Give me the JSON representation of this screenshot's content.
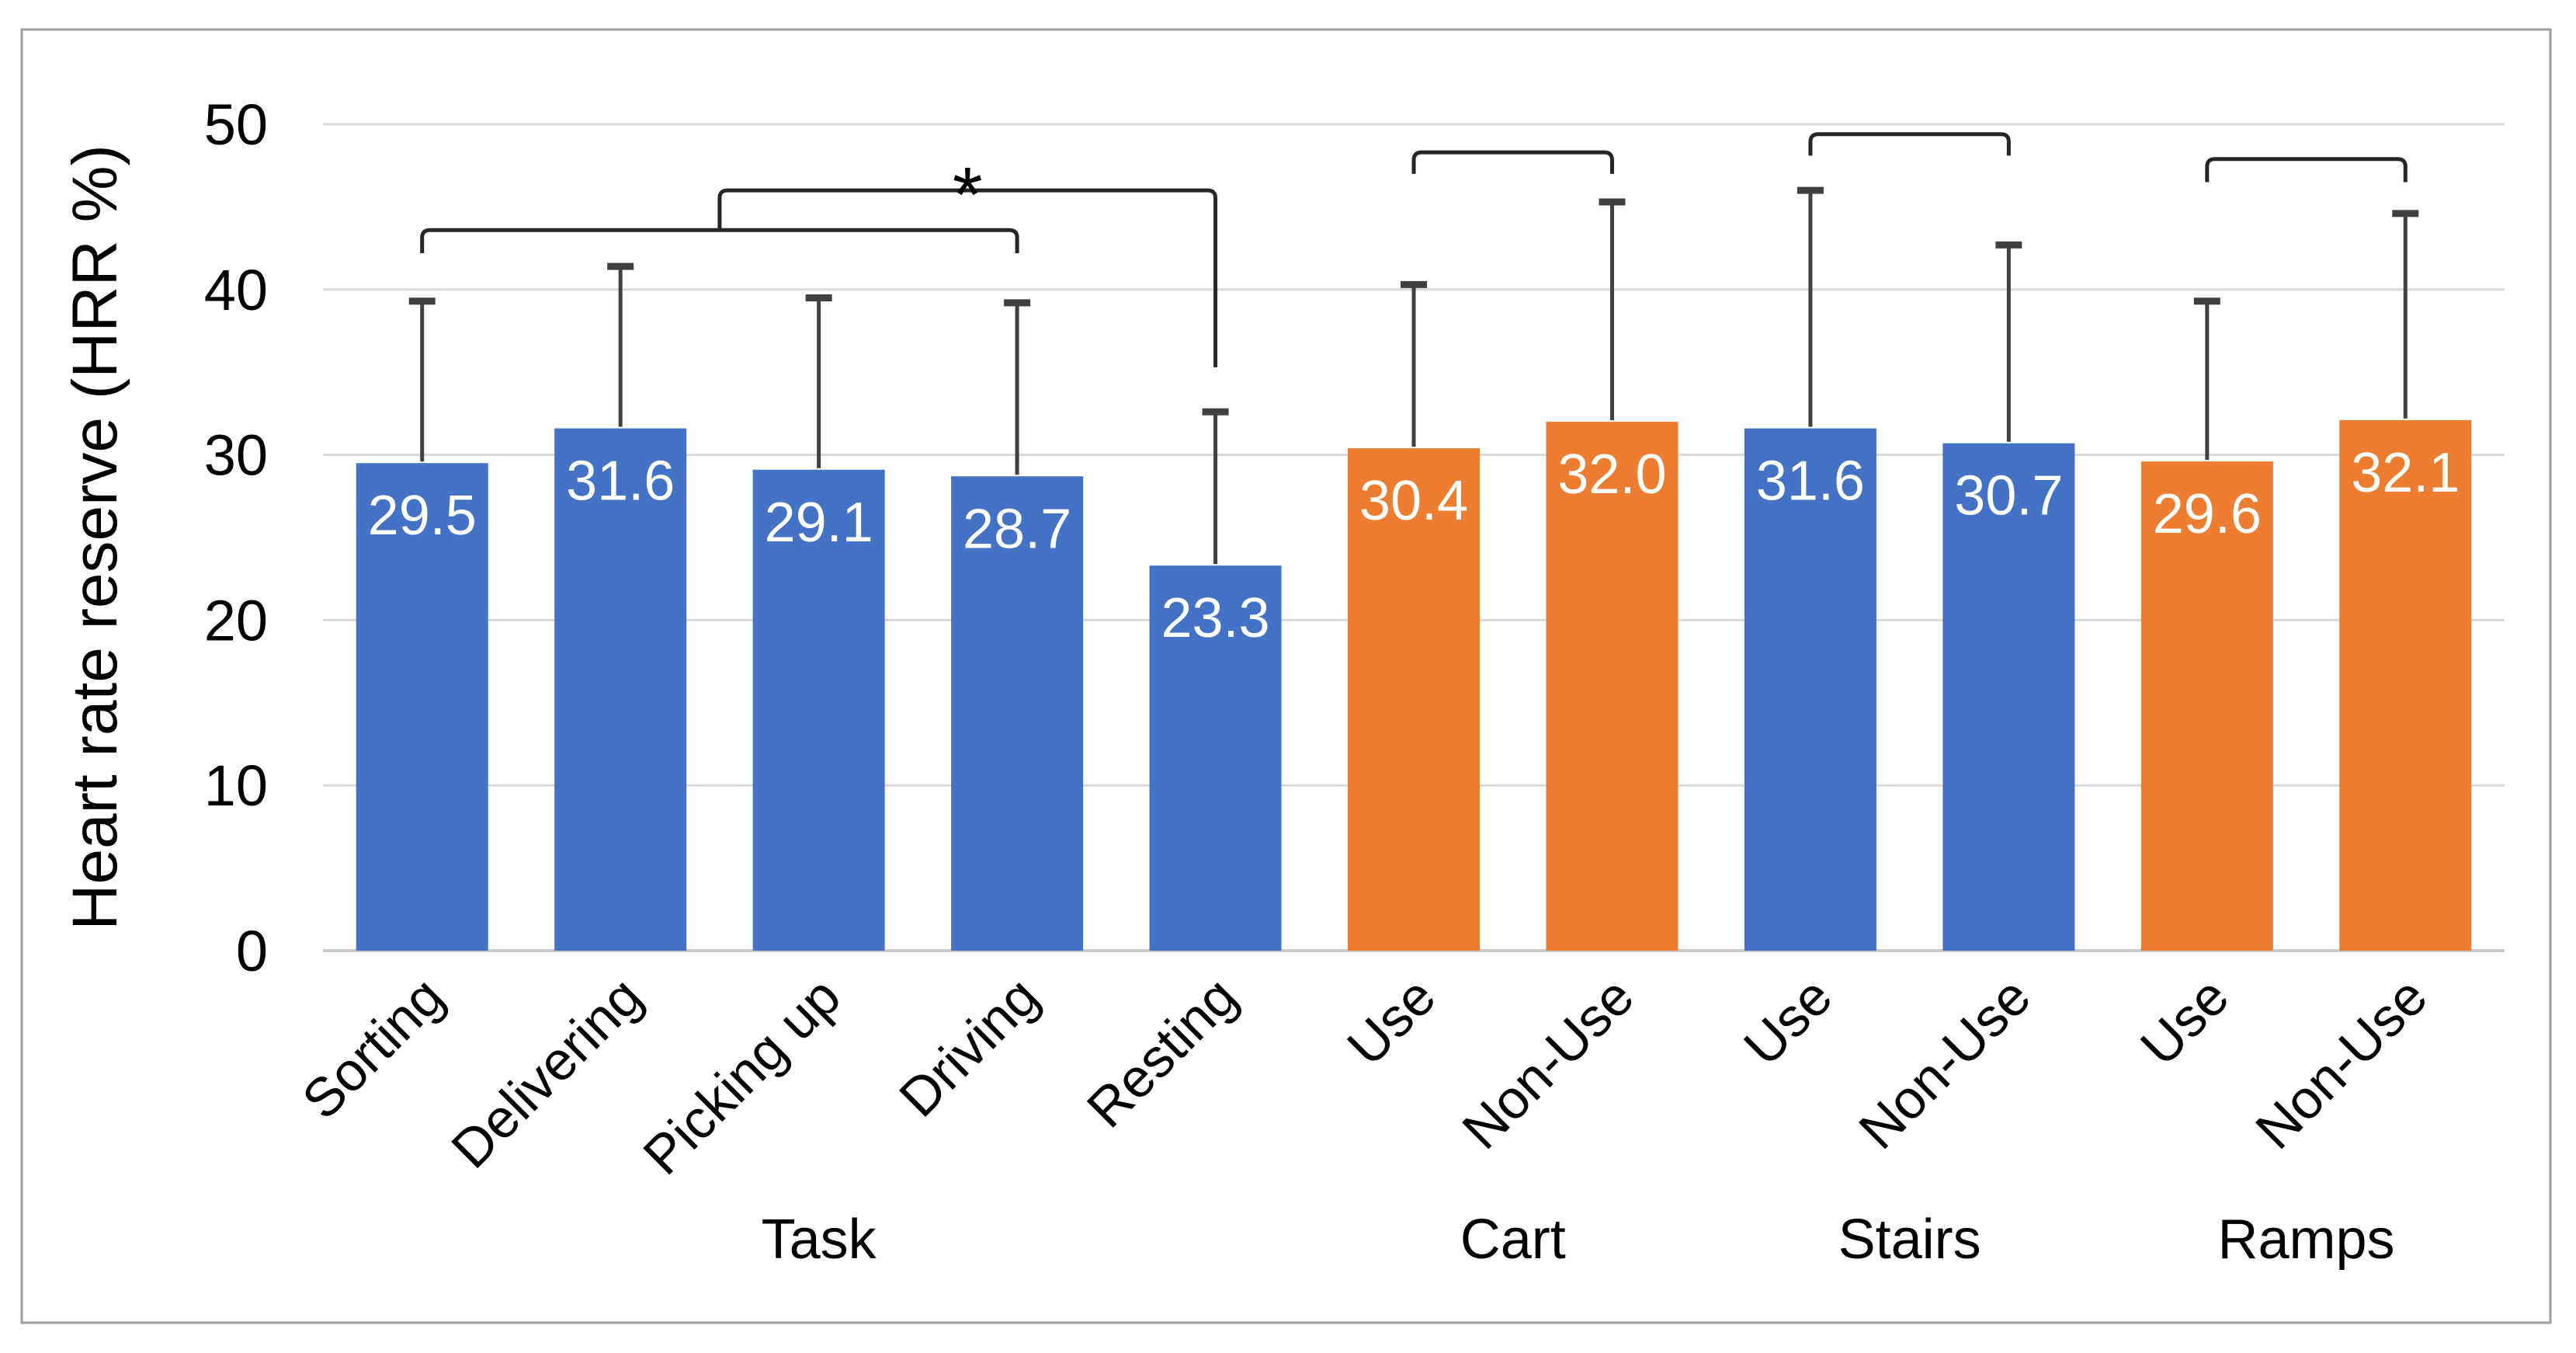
{
  "figure": {
    "y_axis_title": "Heart rate reserve (HRR %)",
    "significance_star": "*"
  },
  "colors": {
    "blue": "#4472C4",
    "orange": "#ED7D31",
    "grid": "#D9D9D9",
    "baseline": "#C9C9C9",
    "error_bar": "#404040",
    "bracket": "#262626",
    "figure_border": "#9E9E9E",
    "tick_text": "#000000",
    "value_text": "#FFFFFF"
  },
  "chart_data": {
    "type": "bar",
    "title": "",
    "xlabel": "",
    "ylabel": "Heart rate reserve (HRR %)",
    "ylim": [
      0,
      50
    ],
    "yticks": [
      0,
      10,
      20,
      30,
      40,
      50
    ],
    "grid": "horizontal",
    "legend": "none",
    "groups": [
      {
        "label": "Task",
        "color": "blue",
        "bars": [
          {
            "label": "Sorting",
            "value": 29.5,
            "error_top": 39.3
          },
          {
            "label": "Delivering",
            "value": 31.6,
            "error_top": 41.4
          },
          {
            "label": "Picking up",
            "value": 29.1,
            "error_top": 39.5
          },
          {
            "label": "Driving",
            "value": 28.7,
            "error_top": 39.2
          },
          {
            "label": "Resting",
            "value": 23.3,
            "error_top": 32.6
          }
        ]
      },
      {
        "label": "Cart",
        "color": "orange",
        "bars": [
          {
            "label": "Use",
            "value": 30.4,
            "error_top": 40.3
          },
          {
            "label": "Non-Use",
            "value": 32.0,
            "error_top": 45.3
          }
        ]
      },
      {
        "label": "Stairs",
        "color": "blue",
        "bars": [
          {
            "label": "Use",
            "value": 31.6,
            "error_top": 46.0
          },
          {
            "label": "Non-Use",
            "value": 30.7,
            "error_top": 42.7
          }
        ]
      },
      {
        "label": "Ramps",
        "color": "orange",
        "bars": [
          {
            "label": "Use",
            "value": 29.6,
            "error_top": 39.3
          },
          {
            "label": "Non-Use",
            "value": 32.1,
            "error_top": 44.6
          }
        ]
      }
    ],
    "significance": [
      {
        "kind": "nested-bracket",
        "star": "*",
        "group": "Task",
        "lower": {
          "from_bar": "Sorting",
          "to_bar": "Driving",
          "y_value": 43.6,
          "end_drop_value": 42.2
        },
        "upper": {
          "from": "midpoint-of-lower",
          "to_bar": "Resting",
          "y_value": 46.0,
          "right_end_value": 35.3
        }
      },
      {
        "kind": "pair-bracket",
        "group": "Cart",
        "y_value": 48.3,
        "end_drop_value": 47.0
      },
      {
        "kind": "pair-bracket",
        "group": "Stairs",
        "y_value": 49.4,
        "end_drop_value": 48.1
      },
      {
        "kind": "pair-bracket",
        "group": "Ramps",
        "y_value": 47.9,
        "end_drop_value": 46.5
      }
    ]
  }
}
